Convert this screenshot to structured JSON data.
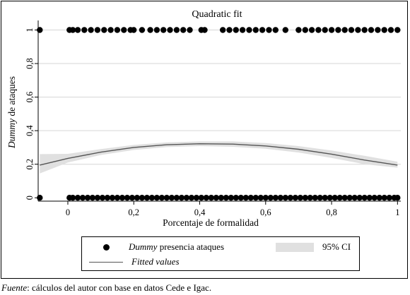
{
  "chart_data": {
    "type": "scatter",
    "title": "Quadratic fit",
    "xlabel": "Porcentaje de formalidad",
    "ylabel": {
      "italic": "Dummy",
      "rest": " de ataques"
    },
    "xlim": [
      -0.09,
      1.01
    ],
    "ylim": [
      -0.02,
      1.04
    ],
    "x_ticks": [
      0,
      0.2,
      0.4,
      0.6,
      0.8,
      1
    ],
    "x_tick_labels": [
      "0",
      "0,2",
      "0,4",
      "0,6",
      "0,8",
      "1"
    ],
    "y_ticks": [
      0,
      0.2,
      0.4,
      0.6,
      0.8,
      1
    ],
    "y_tick_labels": [
      "0",
      "0,2",
      "0,4",
      "0,6",
      "0,8",
      "1"
    ],
    "grid": "horizontal",
    "legend_position": "bottom",
    "colors": {
      "points": "#000000",
      "fit_line": "#555555",
      "ci_band": "#e0e0e0",
      "grid": "#d6d6d6"
    },
    "series": [
      {
        "name_italic": "Dummy",
        "name_rest": " presencia ataques",
        "kind": "points",
        "y1_points_x": [
          -0.085,
          0.005,
          0.015,
          0.03,
          0.05,
          0.07,
          0.09,
          0.11,
          0.13,
          0.15,
          0.17,
          0.19,
          0.2,
          0.225,
          0.25,
          0.27,
          0.29,
          0.31,
          0.33,
          0.35,
          0.37,
          0.405,
          0.415,
          0.47,
          0.49,
          0.51,
          0.53,
          0.55,
          0.57,
          0.59,
          0.61,
          0.63,
          0.66,
          0.7,
          0.72,
          0.74,
          0.76,
          0.78,
          0.8,
          0.82,
          0.84,
          0.86,
          0.88,
          0.9,
          0.92,
          0.94,
          0.96,
          0.98,
          1.0
        ],
        "y0_points_x": [
          -0.085,
          0.005,
          0.015,
          0.03,
          0.045,
          0.06,
          0.075,
          0.09,
          0.105,
          0.12,
          0.135,
          0.15,
          0.165,
          0.18,
          0.195,
          0.21,
          0.225,
          0.24,
          0.255,
          0.27,
          0.285,
          0.3,
          0.315,
          0.33,
          0.345,
          0.36,
          0.375,
          0.39,
          0.405,
          0.42,
          0.435,
          0.45,
          0.465,
          0.48,
          0.495,
          0.51,
          0.525,
          0.54,
          0.555,
          0.57,
          0.585,
          0.6,
          0.615,
          0.63,
          0.645,
          0.66,
          0.675,
          0.69,
          0.705,
          0.72,
          0.735,
          0.75,
          0.765,
          0.78,
          0.795,
          0.81,
          0.825,
          0.84,
          0.855,
          0.87,
          0.885,
          0.9,
          0.915,
          0.93,
          0.945,
          0.96,
          0.975,
          0.99,
          1.0
        ]
      },
      {
        "name": "Fitted values",
        "kind": "line",
        "x": [
          -0.085,
          0.0,
          0.1,
          0.2,
          0.3,
          0.4,
          0.5,
          0.6,
          0.7,
          0.8,
          0.9,
          1.0
        ],
        "y": [
          0.195,
          0.235,
          0.272,
          0.3,
          0.316,
          0.322,
          0.32,
          0.309,
          0.289,
          0.26,
          0.225,
          0.195
        ]
      },
      {
        "name": "95% CI",
        "kind": "band",
        "x": [
          -0.085,
          0.0,
          0.1,
          0.2,
          0.3,
          0.4,
          0.5,
          0.6,
          0.7,
          0.8,
          0.9,
          1.0
        ],
        "lower": [
          0.145,
          0.21,
          0.255,
          0.285,
          0.302,
          0.308,
          0.304,
          0.292,
          0.27,
          0.238,
          0.2,
          0.18
        ],
        "upper": [
          0.26,
          0.262,
          0.29,
          0.315,
          0.33,
          0.336,
          0.336,
          0.326,
          0.308,
          0.282,
          0.25,
          0.215
        ]
      }
    ]
  },
  "legend": {
    "points_label_italic": "Dummy",
    "points_label_rest": " presencia ataques",
    "fit_label": "Fitted values",
    "ci_label": "95% CI"
  },
  "source": {
    "label": "Fuente",
    "text": ": cálculos del autor con base en datos Cede e Igac."
  }
}
